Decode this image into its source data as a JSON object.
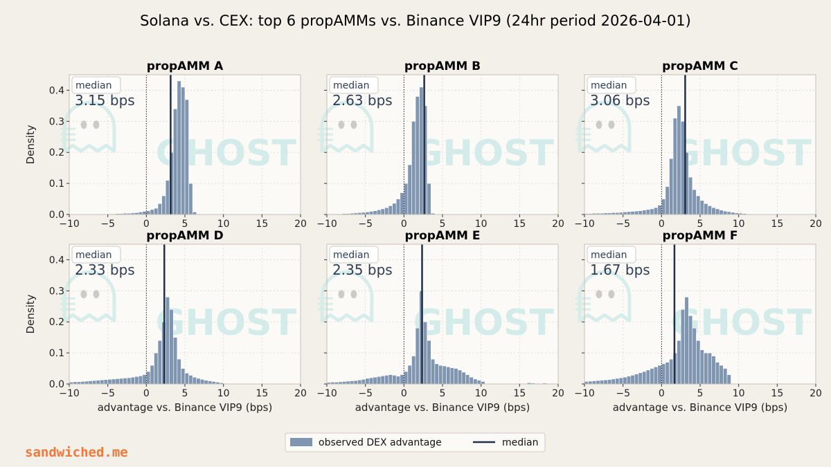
{
  "figure": {
    "title": "Solana vs. CEX: top 6 propAMMs vs. Binance VIP9 (24hr period 2026-04-01)",
    "watermark": "GHOST",
    "brand": "sandwiched.me"
  },
  "legend": {
    "bar_label": "observed DEX advantage",
    "median_label": "median",
    "placement": "bottom-center"
  },
  "colors": {
    "bar": "#7f95b0",
    "median": "#1f2f45",
    "panel_bg": "#fbfaf7",
    "page_bg": "#f3efe9",
    "brand": "#ee7a3c"
  },
  "chart_data": [
    {
      "type": "bar",
      "title": "propAMM A",
      "xlabel": "",
      "ylabel": "Density",
      "xlim": [
        -10,
        20
      ],
      "ylim": [
        0,
        0.45
      ],
      "xticks": [
        -10,
        -5,
        0,
        5,
        10,
        15,
        20
      ],
      "yticks": [
        0.0,
        0.1,
        0.2,
        0.3,
        0.4
      ],
      "bin_start": -10,
      "bin_width": 0.5,
      "median": 3.15,
      "median_label": "median",
      "median_text": "3.15 bps",
      "values": [
        0.0,
        0.0,
        0.0,
        0.0,
        0.0,
        0.0,
        0.0,
        0.0,
        0.0,
        0.0,
        0.002,
        0.002,
        0.003,
        0.003,
        0.004,
        0.004,
        0.005,
        0.006,
        0.008,
        0.01,
        0.012,
        0.016,
        0.02,
        0.035,
        0.06,
        0.11,
        0.2,
        0.34,
        0.43,
        0.41,
        0.37,
        0.1,
        0.008,
        0.002,
        0.0,
        0.0,
        0.0,
        0.0,
        0.0,
        0.0,
        0.0,
        0.0,
        0.0,
        0.0,
        0.0,
        0.0,
        0.0,
        0.0,
        0.0,
        0.0,
        0.0,
        0.0,
        0.0,
        0.0,
        0.0,
        0.0,
        0.0,
        0.0,
        0.0,
        0.0
      ]
    },
    {
      "type": "bar",
      "title": "propAMM B",
      "xlabel": "",
      "ylabel": "",
      "xlim": [
        -10,
        20
      ],
      "ylim": [
        0,
        0.45
      ],
      "xticks": [
        -10,
        -5,
        0,
        5,
        10,
        15,
        20
      ],
      "yticks": [
        0.0,
        0.1,
        0.2,
        0.3,
        0.4
      ],
      "bin_start": -10,
      "bin_width": 0.5,
      "median": 2.63,
      "median_label": "median",
      "median_text": "2.63 bps",
      "values": [
        0.001,
        0.002,
        0.002,
        0.002,
        0.003,
        0.003,
        0.004,
        0.005,
        0.006,
        0.007,
        0.008,
        0.01,
        0.012,
        0.015,
        0.018,
        0.022,
        0.028,
        0.036,
        0.05,
        0.07,
        0.1,
        0.16,
        0.3,
        0.38,
        0.41,
        0.35,
        0.1,
        0.004,
        0.0,
        0.0,
        0.0,
        0.0,
        0.0,
        0.0,
        0.0,
        0.0,
        0.0,
        0.0,
        0.0,
        0.0,
        0.0,
        0.0,
        0.0,
        0.0,
        0.0,
        0.0,
        0.0,
        0.0,
        0.0,
        0.0,
        0.0,
        0.0,
        0.0,
        0.0,
        0.0,
        0.0,
        0.0,
        0.0,
        0.0,
        0.0
      ]
    },
    {
      "type": "bar",
      "title": "propAMM C",
      "xlabel": "",
      "ylabel": "",
      "xlim": [
        -10,
        20
      ],
      "ylim": [
        0,
        0.45
      ],
      "xticks": [
        -10,
        -5,
        0,
        5,
        10,
        15,
        20
      ],
      "yticks": [
        0.0,
        0.1,
        0.2,
        0.3,
        0.4
      ],
      "bin_start": -10,
      "bin_width": 0.5,
      "median": 3.06,
      "median_label": "median",
      "median_text": "3.06 bps",
      "values": [
        0.003,
        0.003,
        0.004,
        0.004,
        0.004,
        0.005,
        0.005,
        0.006,
        0.006,
        0.007,
        0.008,
        0.009,
        0.01,
        0.011,
        0.012,
        0.014,
        0.016,
        0.018,
        0.022,
        0.03,
        0.05,
        0.09,
        0.18,
        0.31,
        0.35,
        0.3,
        0.2,
        0.12,
        0.08,
        0.06,
        0.045,
        0.035,
        0.028,
        0.022,
        0.018,
        0.014,
        0.011,
        0.009,
        0.007,
        0.005,
        0.004,
        0.003,
        0.002,
        0.001,
        0.0,
        0.0,
        0.0,
        0.0,
        0.0,
        0.0,
        0.0,
        0.0,
        0.0,
        0.0,
        0.0,
        0.0,
        0.0,
        0.0,
        0.0,
        0.0
      ]
    },
    {
      "type": "bar",
      "title": "propAMM D",
      "xlabel": "advantage vs. Binance VIP9 (bps)",
      "ylabel": "Density",
      "xlim": [
        -10,
        20
      ],
      "ylim": [
        0,
        0.45
      ],
      "xticks": [
        -10,
        -5,
        0,
        5,
        10,
        15,
        20
      ],
      "yticks": [
        0.0,
        0.1,
        0.2,
        0.3,
        0.4
      ],
      "bin_start": -10,
      "bin_width": 0.5,
      "median": 2.33,
      "median_label": "median",
      "median_text": "2.33 bps",
      "values": [
        0.006,
        0.007,
        0.007,
        0.008,
        0.009,
        0.01,
        0.011,
        0.012,
        0.013,
        0.014,
        0.015,
        0.016,
        0.017,
        0.018,
        0.019,
        0.02,
        0.022,
        0.024,
        0.026,
        0.03,
        0.04,
        0.06,
        0.1,
        0.14,
        0.2,
        0.28,
        0.24,
        0.15,
        0.08,
        0.05,
        0.035,
        0.028,
        0.022,
        0.018,
        0.015,
        0.012,
        0.01,
        0.008,
        0.006,
        0.004,
        0.002,
        0.001,
        0.0,
        0.0,
        0.0,
        0.0,
        0.0,
        0.0,
        0.0,
        0.0,
        0.0,
        0.0,
        0.0,
        0.0,
        0.0,
        0.0,
        0.0,
        0.0,
        0.0,
        0.0
      ]
    },
    {
      "type": "bar",
      "title": "propAMM E",
      "xlabel": "advantage vs. Binance VIP9 (bps)",
      "ylabel": "",
      "xlim": [
        -10,
        20
      ],
      "ylim": [
        0,
        0.45
      ],
      "xticks": [
        -10,
        -5,
        0,
        5,
        10,
        15,
        20
      ],
      "yticks": [
        0.0,
        0.1,
        0.2,
        0.3,
        0.4
      ],
      "bin_start": -10,
      "bin_width": 0.5,
      "median": 2.35,
      "median_label": "median",
      "median_text": "2.35 bps",
      "values": [
        0.005,
        0.006,
        0.006,
        0.007,
        0.008,
        0.009,
        0.01,
        0.011,
        0.013,
        0.015,
        0.018,
        0.02,
        0.022,
        0.024,
        0.026,
        0.028,
        0.03,
        0.028,
        0.025,
        0.03,
        0.04,
        0.06,
        0.09,
        0.18,
        0.3,
        0.2,
        0.14,
        0.08,
        0.065,
        0.06,
        0.058,
        0.055,
        0.052,
        0.05,
        0.045,
        0.038,
        0.03,
        0.022,
        0.016,
        0.012,
        0.008,
        0.0,
        0.0,
        0.0,
        0.0,
        0.0,
        0.0,
        0.0,
        0.0,
        0.0,
        0.0,
        0.0,
        0.004,
        0.003,
        0.002,
        0.002,
        0.003,
        0.002,
        0.0,
        0.0
      ]
    },
    {
      "type": "bar",
      "title": "propAMM F",
      "xlabel": "advantage vs. Binance VIP9 (bps)",
      "ylabel": "",
      "xlim": [
        -10,
        20
      ],
      "ylim": [
        0,
        0.45
      ],
      "xticks": [
        -10,
        -5,
        0,
        5,
        10,
        15,
        20
      ],
      "yticks": [
        0.0,
        0.1,
        0.2,
        0.3,
        0.4
      ],
      "bin_start": -10,
      "bin_width": 0.5,
      "median": 1.67,
      "median_label": "median",
      "median_text": "1.67 bps",
      "values": [
        0.008,
        0.009,
        0.01,
        0.011,
        0.012,
        0.013,
        0.014,
        0.016,
        0.018,
        0.02,
        0.022,
        0.025,
        0.028,
        0.032,
        0.036,
        0.04,
        0.045,
        0.05,
        0.055,
        0.06,
        0.065,
        0.07,
        0.08,
        0.1,
        0.14,
        0.24,
        0.28,
        0.22,
        0.18,
        0.14,
        0.11,
        0.1,
        0.1,
        0.09,
        0.07,
        0.06,
        0.05,
        0.03,
        0.0,
        0.0,
        0.0,
        0.0,
        0.0,
        0.0,
        0.0,
        0.0,
        0.0,
        0.0,
        0.0,
        0.0,
        0.0,
        0.0,
        0.0,
        0.0,
        0.0,
        0.0,
        0.0,
        0.0,
        0.0,
        0.0
      ]
    }
  ]
}
